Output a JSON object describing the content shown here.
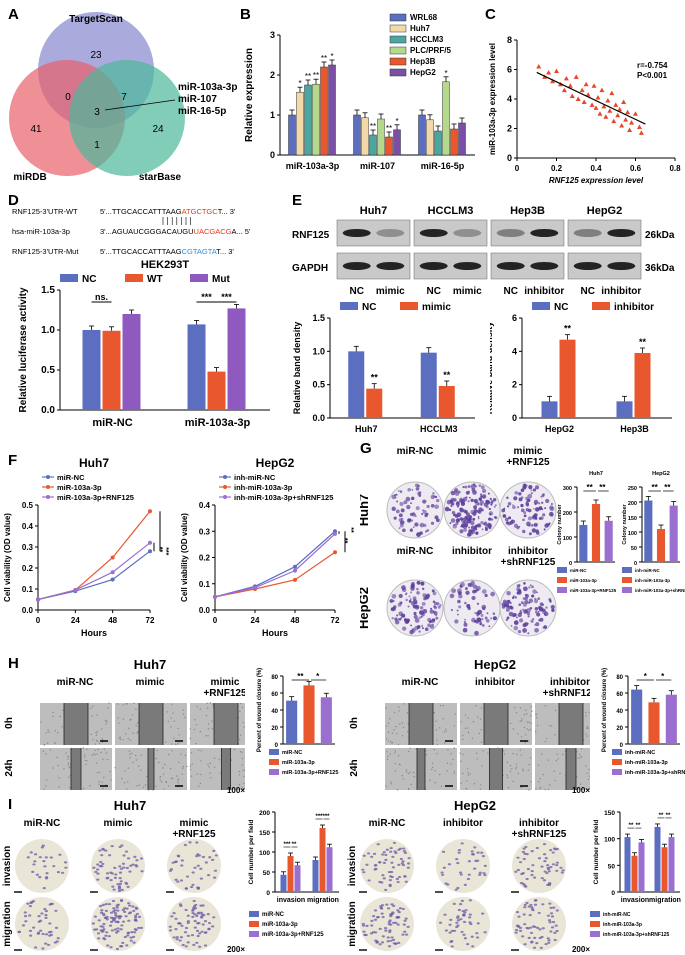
{
  "panels": {
    "A": "A",
    "B": "B",
    "C": "C",
    "D": "D",
    "E": "E",
    "F": "F",
    "G": "G",
    "H": "H",
    "I": "I"
  },
  "venn": {
    "top": "TargetScan",
    "left": "miRDB",
    "right": "starBase",
    "n_top": "23",
    "n_left": "41",
    "n_right": "24",
    "n_tl": "0",
    "n_tr": "7",
    "n_lr": "1",
    "n_center": "3",
    "mirs": [
      "miR-103a-3p",
      "miR-107",
      "miR-16-5p"
    ]
  },
  "chart_data": [
    {
      "id": "B",
      "type": "bar",
      "ylabel": "Relative expression",
      "ylim": [
        0,
        3
      ],
      "yticks": [
        0,
        1,
        2,
        3
      ],
      "categories": [
        "miR-103a-3p",
        "miR-107",
        "miR-16-5p"
      ],
      "series": [
        {
          "name": "WRL68",
          "color": "#5b6ec0",
          "values": [
            1.0,
            1.0,
            1.0
          ],
          "sig": [
            "",
            "",
            ""
          ]
        },
        {
          "name": "Huh7",
          "color": "#f4d9a8",
          "values": [
            1.57,
            0.93,
            0.88
          ],
          "sig": [
            "*",
            "",
            ""
          ]
        },
        {
          "name": "HCCLM3",
          "color": "#4ca6a0",
          "values": [
            1.75,
            0.5,
            0.6
          ],
          "sig": [
            "**",
            "**",
            ""
          ]
        },
        {
          "name": "PLC/PRF/5",
          "color": "#b5d98c",
          "values": [
            1.77,
            0.9,
            1.83
          ],
          "sig": [
            "**",
            "",
            "*"
          ]
        },
        {
          "name": "Hep3B",
          "color": "#e9572f",
          "values": [
            2.2,
            0.45,
            0.65
          ],
          "sig": [
            "**",
            "**",
            ""
          ]
        },
        {
          "name": "HepG2",
          "color": "#7b4fa6",
          "values": [
            2.25,
            0.63,
            0.8
          ],
          "sig": [
            "*",
            "*",
            ""
          ]
        }
      ]
    },
    {
      "id": "C",
      "type": "scatter",
      "xlabel": "RNF125 expression level",
      "ylabel": "miR-103a-3p expression level",
      "xlim": [
        0,
        0.8
      ],
      "ylim": [
        0,
        8
      ],
      "xticks": [
        0,
        0.2,
        0.4,
        0.6,
        0.8
      ],
      "yticks": [
        0,
        2,
        4,
        6,
        8
      ],
      "stats": [
        "r=-0.754",
        "P<0.001"
      ],
      "points": [
        [
          0.11,
          6.2
        ],
        [
          0.14,
          5.5
        ],
        [
          0.16,
          5.8
        ],
        [
          0.18,
          5.2
        ],
        [
          0.2,
          5.9
        ],
        [
          0.22,
          5.0
        ],
        [
          0.24,
          4.6
        ],
        [
          0.25,
          5.4
        ],
        [
          0.27,
          4.9
        ],
        [
          0.28,
          4.2
        ],
        [
          0.3,
          5.5
        ],
        [
          0.31,
          4.0
        ],
        [
          0.33,
          4.6
        ],
        [
          0.34,
          3.8
        ],
        [
          0.35,
          5.0
        ],
        [
          0.36,
          4.3
        ],
        [
          0.38,
          3.6
        ],
        [
          0.39,
          4.9
        ],
        [
          0.4,
          3.4
        ],
        [
          0.41,
          4.1
        ],
        [
          0.42,
          3.0
        ],
        [
          0.43,
          4.6
        ],
        [
          0.44,
          3.5
        ],
        [
          0.45,
          2.8
        ],
        [
          0.46,
          3.9
        ],
        [
          0.47,
          3.2
        ],
        [
          0.48,
          4.4
        ],
        [
          0.49,
          2.5
        ],
        [
          0.5,
          3.6
        ],
        [
          0.51,
          2.9
        ],
        [
          0.52,
          3.3
        ],
        [
          0.53,
          2.2
        ],
        [
          0.54,
          3.8
        ],
        [
          0.55,
          2.6
        ],
        [
          0.56,
          3.1
        ],
        [
          0.57,
          1.9
        ],
        [
          0.58,
          2.4
        ],
        [
          0.6,
          3.0
        ],
        [
          0.62,
          2.1
        ],
        [
          0.63,
          1.7
        ]
      ],
      "fit": [
        [
          0.1,
          5.8
        ],
        [
          0.65,
          2.3
        ]
      ]
    },
    {
      "id": "D",
      "type": "bar",
      "title": "HEK293T",
      "ylabel": "Relative luciferase activity",
      "ylim": [
        0,
        1.5
      ],
      "yticks": [
        0.0,
        0.5,
        1.0,
        1.5
      ],
      "categories": [
        "miR-NC",
        "miR-103a-3p"
      ],
      "series": [
        {
          "name": "NC",
          "color": "#5b6ec0",
          "values": [
            1.0,
            1.07
          ]
        },
        {
          "name": "WT",
          "color": "#e9572f",
          "values": [
            0.99,
            0.48
          ]
        },
        {
          "name": "Mut",
          "color": "#8e5ac0",
          "values": [
            1.2,
            1.27
          ]
        }
      ],
      "sig": [
        "ns.",
        "***",
        "***"
      ]
    },
    {
      "id": "E1",
      "type": "bar",
      "ylabel": "Relative band density",
      "ylim": [
        0,
        1.5
      ],
      "yticks": [
        0.0,
        0.5,
        1.0,
        1.5
      ],
      "categories": [
        "Huh7",
        "HCCLM3"
      ],
      "series": [
        {
          "name": "NC",
          "color": "#5b6ec0",
          "values": [
            1.0,
            0.98
          ]
        },
        {
          "name": "mimic",
          "color": "#e9572f",
          "values": [
            0.44,
            0.48
          ]
        }
      ],
      "sig": [
        "**",
        "**"
      ]
    },
    {
      "id": "E2",
      "type": "bar",
      "ylabel": "Relative band density",
      "ylim": [
        0,
        6
      ],
      "yticks": [
        0,
        2,
        4,
        6
      ],
      "categories": [
        "HepG2",
        "Hep3B"
      ],
      "series": [
        {
          "name": "NC",
          "color": "#5b6ec0",
          "values": [
            1.0,
            1.0
          ]
        },
        {
          "name": "inhibitor",
          "color": "#e9572f",
          "values": [
            4.7,
            3.9
          ]
        }
      ],
      "sig": [
        "**",
        "**"
      ]
    },
    {
      "id": "F1",
      "type": "line",
      "title": "Huh7",
      "xlabel": "Hours",
      "ylabel": "Cell viability (OD value)",
      "xlim": [
        0,
        72
      ],
      "ylim": [
        0,
        0.5
      ],
      "xticks": [
        0,
        24,
        48,
        72
      ],
      "yticks": [
        0.0,
        0.1,
        0.2,
        0.3,
        0.4,
        0.5
      ],
      "x": [
        0,
        24,
        48,
        72
      ],
      "series": [
        {
          "name": "miR-NC",
          "color": "#5b6ec0",
          "values": [
            0.05,
            0.09,
            0.145,
            0.28
          ]
        },
        {
          "name": "miR-103a-3p",
          "color": "#e9572f",
          "values": [
            0.05,
            0.095,
            0.25,
            0.47
          ]
        },
        {
          "name": "miR-103a-3p+RNF125",
          "color": "#9a6fd0",
          "values": [
            0.05,
            0.095,
            0.18,
            0.32
          ]
        }
      ],
      "sig": [
        "**",
        "***"
      ]
    },
    {
      "id": "F2",
      "type": "line",
      "title": "HepG2",
      "xlabel": "Hours",
      "ylabel": "Cell viability (OD value)",
      "xlim": [
        0,
        72
      ],
      "ylim": [
        0,
        0.4
      ],
      "xticks": [
        0,
        24,
        48,
        72
      ],
      "yticks": [
        0.0,
        0.1,
        0.2,
        0.3,
        0.4
      ],
      "x": [
        0,
        24,
        48,
        72
      ],
      "series": [
        {
          "name": "inh-miR-NC",
          "color": "#5b6ec0",
          "values": [
            0.05,
            0.09,
            0.165,
            0.3
          ]
        },
        {
          "name": "inh-miR-103a-3p",
          "color": "#e9572f",
          "values": [
            0.05,
            0.08,
            0.115,
            0.22
          ]
        },
        {
          "name": "inh-miR-103a-3p+shRNF125",
          "color": "#9a6fd0",
          "values": [
            0.05,
            0.085,
            0.15,
            0.29
          ]
        }
      ],
      "sig": [
        "**",
        "**"
      ]
    },
    {
      "id": "G1",
      "type": "bar",
      "title": "Huh7",
      "ylabel": "Colony number",
      "ylim": [
        0,
        300
      ],
      "yticks": [
        0,
        100,
        200,
        300
      ],
      "categories": [
        "miR-NC",
        "miR-103a-3p",
        "miR-103a-3p+RNF125"
      ],
      "colors": [
        "#5b6ec0",
        "#e9572f",
        "#9a6fd0"
      ],
      "values": [
        148,
        232,
        165
      ],
      "sig": [
        "**",
        "**"
      ]
    },
    {
      "id": "G2",
      "type": "bar",
      "title": "HepG2",
      "ylabel": "Colony number",
      "ylim": [
        0,
        250
      ],
      "yticks": [
        0,
        50,
        100,
        150,
        200,
        250
      ],
      "categories": [
        "inh-miR-NC",
        "inh-miR-103a-3p",
        "inh-miR-103a-3p+shRNF125"
      ],
      "colors": [
        "#5b6ec0",
        "#e9572f",
        "#9a6fd0"
      ],
      "values": [
        205,
        110,
        188
      ],
      "sig": [
        "**",
        "**"
      ]
    },
    {
      "id": "H1",
      "type": "bar",
      "ylabel": "Percent of wound closure (%)",
      "ylim": [
        0,
        80
      ],
      "yticks": [
        0,
        20,
        40,
        60,
        80
      ],
      "categories": [
        "miR-NC",
        "miR-103a-3p",
        "miR-103a-3p+RNF125"
      ],
      "colors": [
        "#5b6ec0",
        "#e9572f",
        "#9a6fd0"
      ],
      "values": [
        51,
        69,
        55
      ],
      "sig": [
        "**",
        "*"
      ]
    },
    {
      "id": "H2",
      "type": "bar",
      "ylabel": "Percent of wound closure (%)",
      "ylim": [
        0,
        80
      ],
      "yticks": [
        0,
        20,
        40,
        60,
        80
      ],
      "categories": [
        "inh-miR-NC",
        "inh-miR-103a-3p",
        "inh-miR-103a-3p+shRNF125"
      ],
      "colors": [
        "#5b6ec0",
        "#e9572f",
        "#9a6fd0"
      ],
      "values": [
        64,
        49,
        58
      ],
      "sig": [
        "*",
        "*"
      ]
    },
    {
      "id": "I1",
      "type": "bar",
      "ylabel": "Cell number per field",
      "ylim": [
        0,
        200
      ],
      "yticks": [
        0,
        50,
        100,
        150,
        200
      ],
      "categories": [
        "invasion",
        "migration"
      ],
      "series": [
        {
          "name": "miR-NC",
          "color": "#5b6ec0",
          "values": [
            43,
            80
          ]
        },
        {
          "name": "miR-103a-3p",
          "color": "#e9572f",
          "values": [
            90,
            160
          ]
        },
        {
          "name": "miR-103a-3p+RNF125",
          "color": "#9a6fd0",
          "values": [
            67,
            112
          ]
        }
      ],
      "sig": [
        "***",
        "**",
        "***",
        "***"
      ]
    },
    {
      "id": "I2",
      "type": "bar",
      "ylabel": "Cell number per field",
      "ylim": [
        0,
        150
      ],
      "yticks": [
        0,
        50,
        100,
        150
      ],
      "categories": [
        "invasion",
        "migration"
      ],
      "series": [
        {
          "name": "inh-miR-NC",
          "color": "#5b6ec0",
          "values": [
            103,
            122
          ]
        },
        {
          "name": "inh-miR-103a-3p",
          "color": "#e9572f",
          "values": [
            68,
            84
          ]
        },
        {
          "name": "inh-miR-103a-3p+shRNF125",
          "color": "#9a6fd0",
          "values": [
            93,
            103
          ]
        }
      ],
      "sig": [
        "**",
        "**",
        "**",
        "**"
      ]
    }
  ],
  "D_seq": {
    "lines": [
      {
        "label": "RNF125-3'UTR-WT",
        "pre": "5'...TTGCACCATTTAAG",
        "hl": "ATGCTGC",
        "post": "T... 3'",
        "color": "#e33a20"
      },
      {
        "label": "hsa-miR-103a-3p",
        "pre": "3'...AGUAUCGGGACAUGU",
        "hl": "UACGACG",
        "post": "A... 5'",
        "color": "#e33a20"
      },
      {
        "label": "RNF125-3'UTR-Mut",
        "pre": "5'...TTGCACCATTTAAG",
        "hl": "CGTAGTA",
        "post": "T... 3'",
        "color": "#3a8fd0"
      }
    ]
  },
  "E_blot": {
    "cells": [
      "Huh7",
      "HCCLM3",
      "Hep3B",
      "HepG2"
    ],
    "rows": [
      "RNF125",
      "GAPDH"
    ],
    "kda": [
      "26kDa",
      "36kDa"
    ],
    "lanes": [
      "NC",
      "mimic",
      "NC",
      "mimic",
      "NC",
      "inhibitor",
      "NC",
      "inhibitor"
    ]
  },
  "G_images": {
    "top": [
      "miR-NC",
      "mimic",
      "mimic\n+RNF125"
    ],
    "bottom": [
      "miR-NC",
      "inhibitor",
      "inhibitor\n+shRNF125"
    ],
    "rowlabels": [
      "Huh7",
      "HepG2"
    ]
  },
  "H_images": {
    "huh_title": "Huh7",
    "hep_title": "HepG2",
    "huh_cols": [
      "miR-NC",
      "mimic",
      "mimic\n+RNF125"
    ],
    "hep_cols": [
      "miR-NC",
      "inhibitor",
      "inhibitor\n+shRNF125"
    ],
    "rows": [
      "0h",
      "24h"
    ],
    "mag": "100×"
  },
  "I_images": {
    "huh_title": "Huh7",
    "hep_title": "HepG2",
    "huh_cols": [
      "miR-NC",
      "mimic",
      "mimic\n+RNF125"
    ],
    "hep_cols": [
      "miR-NC",
      "inhibitor",
      "inhibitor\n+shRNF125"
    ],
    "rows": [
      "invasion",
      "migration"
    ],
    "mag": "200×"
  }
}
